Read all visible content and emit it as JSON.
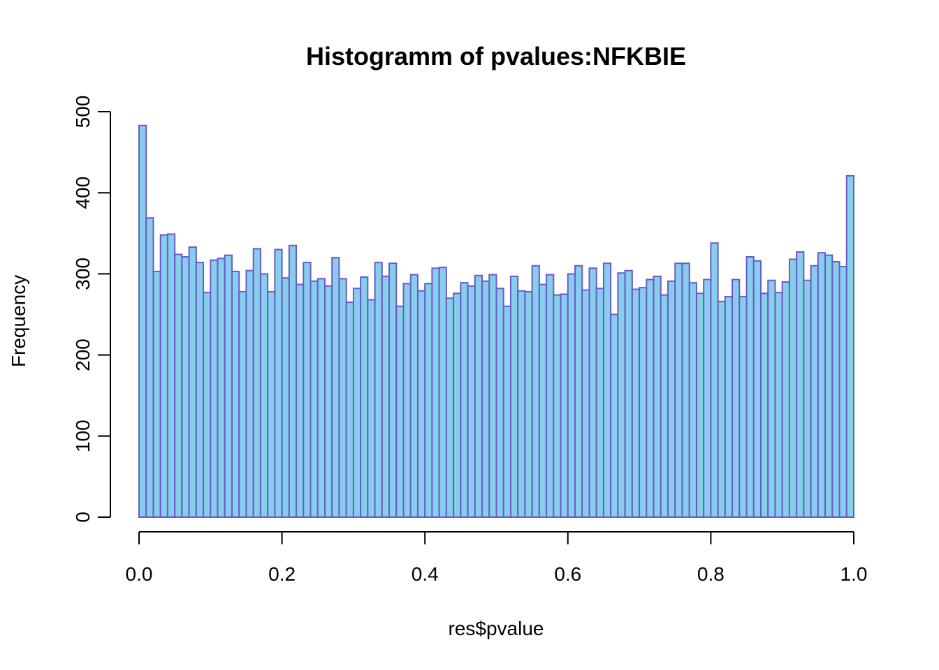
{
  "chart_data": {
    "type": "bar",
    "title": "Histogramm of pvalues:NFKBIE",
    "xlabel": "res$pvalue",
    "ylabel": "Frequency",
    "xlim": [
      0,
      1
    ],
    "ylim": [
      0,
      500
    ],
    "x_ticks": [
      0,
      0.2,
      0.4,
      0.6,
      0.8,
      1.0
    ],
    "x_tick_labels": [
      "0.0",
      "0.2",
      "0.4",
      "0.6",
      "0.8",
      "1.0"
    ],
    "y_ticks": [
      0,
      100,
      200,
      300,
      400,
      500
    ],
    "y_tick_labels": [
      "0",
      "100",
      "200",
      "300",
      "400",
      "500"
    ],
    "bin_width": 0.01,
    "bins_start": 0,
    "values": [
      483,
      369,
      303,
      348,
      349,
      324,
      321,
      333,
      314,
      277,
      317,
      319,
      323,
      303,
      278,
      304,
      331,
      300,
      278,
      330,
      295,
      335,
      287,
      314,
      291,
      294,
      285,
      320,
      294,
      265,
      282,
      296,
      268,
      314,
      297,
      313,
      260,
      288,
      299,
      279,
      288,
      307,
      308,
      270,
      276,
      289,
      285,
      298,
      291,
      299,
      282,
      260,
      297,
      279,
      278,
      310,
      287,
      299,
      274,
      275,
      300,
      310,
      280,
      307,
      282,
      313,
      250,
      301,
      304,
      281,
      283,
      293,
      297,
      274,
      291,
      313,
      313,
      289,
      276,
      293,
      338,
      266,
      272,
      293,
      272,
      321,
      316,
      276,
      292,
      277,
      290,
      318,
      327,
      292,
      310,
      326,
      323,
      315,
      309,
      421
    ],
    "colors": {
      "fill": "#87ceeb",
      "stroke": "#6a5acd"
    },
    "grid": false,
    "legend": "none"
  }
}
